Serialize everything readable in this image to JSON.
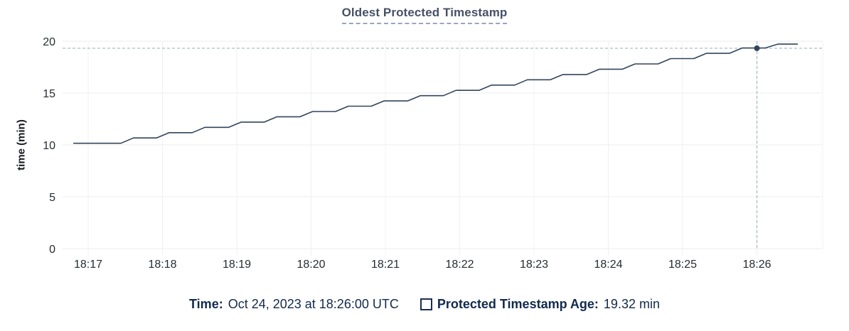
{
  "colors": {
    "line": "#32455c",
    "grid_h": "#ededed",
    "grid_v": "#f0f0f0",
    "crosshair": "#a4b5c1",
    "title": "#475166",
    "legend_text": "#122a4d",
    "axis_text": "#262c33",
    "checkbox_border": "#1d2d50"
  },
  "chart_data": {
    "type": "line",
    "title": "Oldest Protected Timestamp",
    "xlabel": "",
    "ylabel": "time (min)",
    "ylim": [
      0,
      20
    ],
    "yticks": [
      0,
      5,
      10,
      15,
      20
    ],
    "xticks": [
      "18:17",
      "18:18",
      "18:19",
      "18:20",
      "18:21",
      "18:22",
      "18:23",
      "18:24",
      "18:25",
      "18:26"
    ],
    "grid": true,
    "legend_position": "bottom",
    "series": [
      {
        "name": "Protected Timestamp Age",
        "x_unit": "minutes after 18:17",
        "points": [
          [
            -0.2,
            10.16
          ],
          [
            0.44,
            10.16
          ],
          [
            0.61,
            10.67
          ],
          [
            0.92,
            10.67
          ],
          [
            1.09,
            11.18
          ],
          [
            1.4,
            11.18
          ],
          [
            1.57,
            11.69
          ],
          [
            1.89,
            11.69
          ],
          [
            2.06,
            12.2
          ],
          [
            2.37,
            12.2
          ],
          [
            2.54,
            12.71
          ],
          [
            2.85,
            12.71
          ],
          [
            3.02,
            13.22
          ],
          [
            3.33,
            13.22
          ],
          [
            3.5,
            13.73
          ],
          [
            3.81,
            13.73
          ],
          [
            3.98,
            14.24
          ],
          [
            4.3,
            14.24
          ],
          [
            4.47,
            14.75
          ],
          [
            4.78,
            14.75
          ],
          [
            4.95,
            15.26
          ],
          [
            5.26,
            15.26
          ],
          [
            5.43,
            15.77
          ],
          [
            5.74,
            15.77
          ],
          [
            5.91,
            16.28
          ],
          [
            6.22,
            16.28
          ],
          [
            6.39,
            16.79
          ],
          [
            6.71,
            16.79
          ],
          [
            6.88,
            17.3
          ],
          [
            7.19,
            17.3
          ],
          [
            7.36,
            17.81
          ],
          [
            7.67,
            17.81
          ],
          [
            7.84,
            18.32
          ],
          [
            8.15,
            18.32
          ],
          [
            8.32,
            18.83
          ],
          [
            8.63,
            18.83
          ],
          [
            8.8,
            19.34
          ],
          [
            9.11,
            19.34
          ],
          [
            9.28,
            19.72
          ],
          [
            9.55,
            19.72
          ]
        ]
      }
    ],
    "crosshair": {
      "x_minutes": 9.0,
      "x_label": "18:26:00",
      "value": 19.32
    }
  },
  "tooltip": {
    "time_label": "Time:",
    "time_value": "Oct 24, 2023 at 18:26:00 UTC",
    "series_label": "Protected Timestamp Age:",
    "series_value": "19.32 min"
  }
}
